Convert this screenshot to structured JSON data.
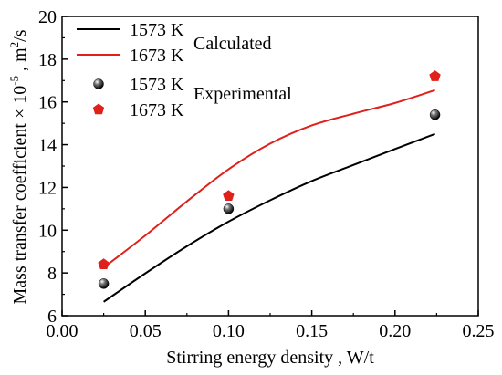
{
  "chart_data": {
    "type": "line",
    "xlabel": "Stirring energy density , W/t",
    "ylabel": "Mass transfer coefficient × 10",
    "ylabel_sup": "-5",
    "ylabel_unit": " , m",
    "ylabel_unit_sup": "2",
    "ylabel_unit_tail": "/s",
    "xlim": [
      0.0,
      0.25
    ],
    "ylim": [
      6,
      20
    ],
    "x_ticks": [
      0.0,
      0.05,
      0.1,
      0.15,
      0.2,
      0.25
    ],
    "x_tick_labels": [
      "0.00",
      "0.05",
      "0.10",
      "0.15",
      "0.20",
      "0.25"
    ],
    "y_ticks": [
      6,
      8,
      10,
      12,
      14,
      16,
      18,
      20
    ],
    "y_tick_labels": [
      "6",
      "8",
      "10",
      "12",
      "14",
      "16",
      "18",
      "20"
    ],
    "grid": false,
    "legend_position": "top-left",
    "legend_groups": [
      "Calculated",
      "Experimental"
    ],
    "series": [
      {
        "name": "1573 K",
        "group": "Calculated",
        "kind": "line",
        "color": "#000000",
        "x": [
          0.025,
          0.05,
          0.075,
          0.1,
          0.125,
          0.15,
          0.175,
          0.2,
          0.224
        ],
        "y": [
          6.65,
          7.98,
          9.25,
          10.4,
          11.4,
          12.3,
          13.05,
          13.8,
          14.5
        ]
      },
      {
        "name": "1673 K",
        "group": "Calculated",
        "kind": "line",
        "color": "#e0201b",
        "x": [
          0.025,
          0.05,
          0.075,
          0.1,
          0.125,
          0.15,
          0.175,
          0.2,
          0.224
        ],
        "y": [
          8.25,
          9.75,
          11.35,
          12.85,
          14.05,
          14.9,
          15.45,
          15.95,
          16.55
        ]
      },
      {
        "name": "1573 K",
        "group": "Experimental",
        "kind": "scatter",
        "marker": "sphere",
        "color": "#000000",
        "x": [
          0.025,
          0.1,
          0.224
        ],
        "y": [
          7.5,
          11.0,
          15.4
        ]
      },
      {
        "name": "1673 K",
        "group": "Experimental",
        "kind": "scatter",
        "marker": "pentagon",
        "color": "#e0201b",
        "x": [
          0.025,
          0.1,
          0.224
        ],
        "y": [
          8.4,
          11.6,
          17.2
        ]
      }
    ]
  }
}
